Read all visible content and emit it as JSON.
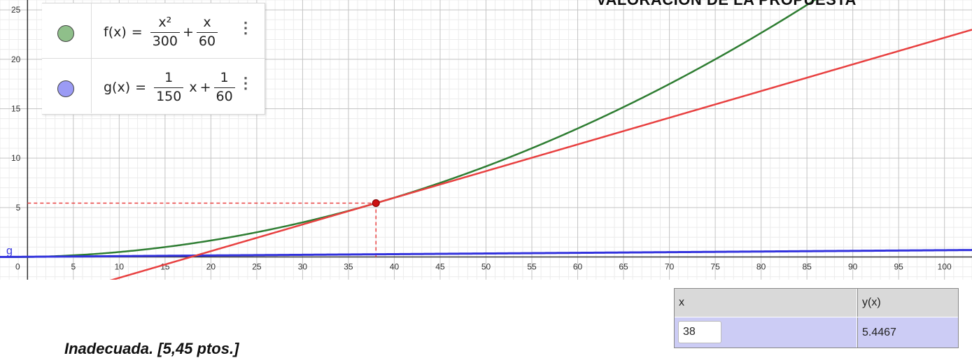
{
  "header": {
    "banner": "VALORACIÓN DE LA PROPUESTA"
  },
  "algebra": {
    "f": {
      "name": "f(x)",
      "eq": "=",
      "num1": "x²",
      "den1": "300",
      "plus": "+",
      "num2": "x",
      "den2": "60",
      "color": "#8fbf8a"
    },
    "g": {
      "name": "g(x)",
      "eq": "=",
      "num1": "1",
      "den1": "150",
      "var": "x",
      "plus": "+",
      "num2": "1",
      "den2": "60",
      "color": "#9b9bf5"
    },
    "menu_icon": "kebab-menu-icon"
  },
  "chart_data": {
    "type": "line",
    "xlim": [
      -3,
      103
    ],
    "ylim": [
      -2.3,
      26
    ],
    "x_ticks": [
      0,
      5,
      10,
      15,
      20,
      25,
      30,
      35,
      40,
      45,
      50,
      55,
      60,
      65,
      70,
      75,
      80,
      85,
      90,
      95,
      100
    ],
    "y_ticks": [
      5,
      10,
      15,
      20,
      25
    ],
    "grid": true,
    "series": [
      {
        "name": "f",
        "formula": "x^2/300 + x/60",
        "color": "#2e7d32"
      },
      {
        "name": "g",
        "formula": "x/150 + 1/60",
        "color": "#3333dd"
      },
      {
        "name": "tangent",
        "formula": "0.27 x - 4.8133",
        "color": "#e84040"
      }
    ],
    "point": {
      "x": 38,
      "y": 5.4467,
      "color": "#cc1111"
    },
    "curve_label": "g"
  },
  "table": {
    "headers": [
      "x",
      "y(x)"
    ],
    "row": {
      "x": "38",
      "y": "5.4467"
    }
  },
  "footer": {
    "verdict": "Inadecuada. [5,45 ptos.]"
  }
}
